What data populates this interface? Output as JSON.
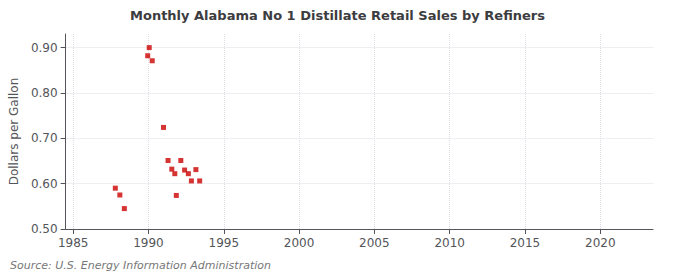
{
  "chart_data": {
    "type": "scatter",
    "title": "Monthly Alabama No 1 Distillate Retail Sales by Refiners",
    "ylabel": "Dollars per Gallon",
    "annotations": [
      "Source: U.S. Energy Information Administration"
    ],
    "color": "#cc0000",
    "marker": "square",
    "x": [
      1987.8,
      1988.1,
      1988.4,
      1989.95,
      1990.05,
      1990.25,
      1991.0,
      1991.3,
      1991.55,
      1991.75,
      1991.85,
      1992.15,
      1992.4,
      1992.65,
      1992.85,
      1993.15,
      1993.4
    ],
    "values": [
      0.59,
      0.575,
      0.545,
      0.882,
      0.9,
      0.871,
      0.724,
      0.651,
      0.632,
      0.622,
      0.574,
      0.651,
      0.63,
      0.622,
      0.606,
      0.631,
      0.606
    ],
    "xlim": [
      1984.5,
      2023.5
    ],
    "ylim": [
      0.5,
      0.93
    ],
    "xticks": [
      1985,
      1990,
      1995,
      2000,
      2005,
      2010,
      2015,
      2020
    ],
    "yticks": [
      {
        "value": 0.5,
        "label": "0.50"
      },
      {
        "value": 0.6,
        "label": "0.60"
      },
      {
        "value": 0.7,
        "label": "0.70"
      },
      {
        "value": 0.8,
        "label": "0.80"
      },
      {
        "value": 0.9,
        "label": "0.90"
      }
    ],
    "grid": true
  }
}
